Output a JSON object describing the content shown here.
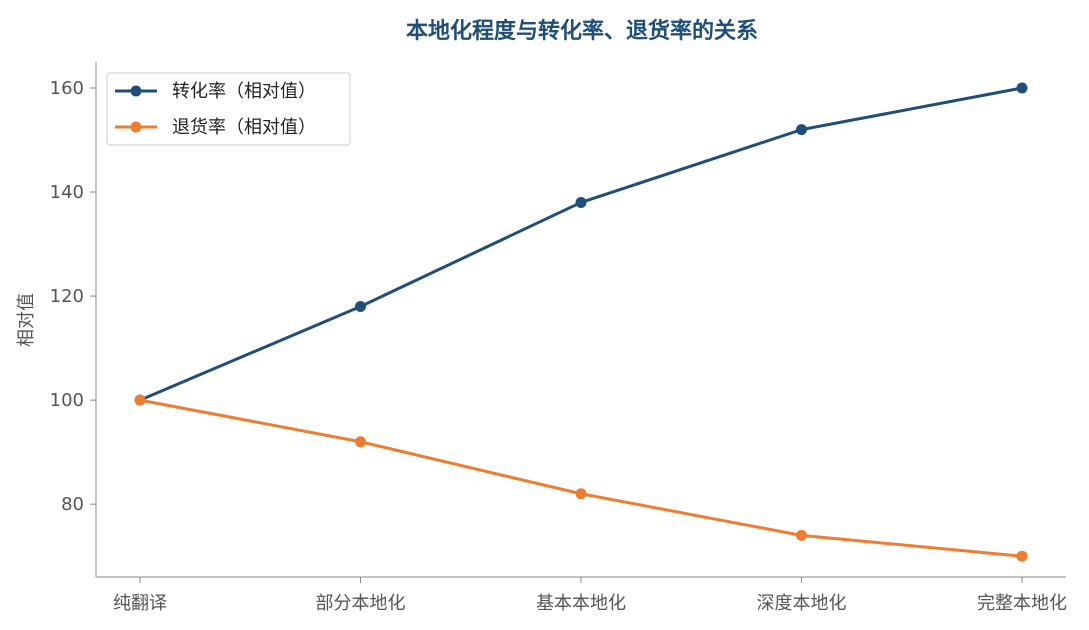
{
  "chart_data": {
    "type": "line",
    "title": "本地化程度与转化率、退货率的关系",
    "xlabel": "",
    "ylabel": "相对值",
    "categories": [
      "纯翻译",
      "部分本地化",
      "基本本地化",
      "深度本地化",
      "完整本地化"
    ],
    "ylim": [
      66,
      165
    ],
    "yticks": [
      80,
      100,
      120,
      140,
      160
    ],
    "grid": false,
    "legend_position": "top-left",
    "series": [
      {
        "name": "转化率（相对值）",
        "color": "#1f4e79",
        "values": [
          100,
          118,
          138,
          152,
          160
        ]
      },
      {
        "name": "退货率（相对值）",
        "color": "#ed7d31",
        "values": [
          100,
          92,
          82,
          74,
          70
        ]
      }
    ]
  }
}
